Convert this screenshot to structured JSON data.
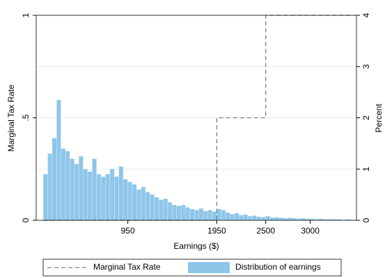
{
  "chart_data": {
    "type": "histogram",
    "xlabel": "Earnings ($)",
    "ylabel": "Marginal Tax Rate",
    "y2label": "Percent",
    "xlim": [
      -80,
      3520
    ],
    "xticks": [
      950,
      1950,
      2500,
      3000
    ],
    "ylim": [
      0,
      1
    ],
    "yticks": [
      0,
      {
        "value": 0.5,
        "label": ".5"
      },
      1
    ],
    "y2lim": [
      0,
      4
    ],
    "y2ticks": [
      0,
      1,
      2,
      3,
      4
    ],
    "grid": true,
    "legend": "bottom",
    "series": [
      {
        "name": "Marginal Tax Rate",
        "type": "line",
        "color": "#7f7f7f",
        "x": [
          0,
          1950,
          1950,
          2500,
          2500,
          3500
        ],
        "values": [
          0,
          0,
          0.5,
          0.5,
          1,
          1
        ]
      },
      {
        "name": "Distribution of earnings",
        "type": "histogram",
        "color": "#8ec6ea",
        "axis": "y2",
        "bins": [
          0,
          50,
          100,
          150,
          200,
          250,
          300,
          350,
          400,
          450,
          500,
          550,
          600,
          650,
          700,
          750,
          800,
          850,
          900,
          950,
          1000,
          1050,
          1100,
          1150,
          1200,
          1250,
          1300,
          1350,
          1400,
          1450,
          1500,
          1550,
          1600,
          1650,
          1700,
          1750,
          1800,
          1850,
          1900,
          1950,
          2000,
          2050,
          2100,
          2150,
          2200,
          2250,
          2300,
          2350,
          2400,
          2450,
          2500,
          2550,
          2600,
          2650,
          2700,
          2750,
          2800,
          2850,
          2900,
          2950,
          3000,
          3050,
          3100,
          3150,
          3200,
          3250,
          3300,
          3350,
          3400,
          3450,
          3500
        ],
        "values": [
          0.9,
          1.3,
          1.6,
          2.35,
          1.4,
          1.35,
          1.2,
          1.1,
          1.25,
          1.0,
          0.95,
          1.2,
          0.9,
          0.85,
          0.9,
          1.0,
          0.85,
          1.05,
          0.8,
          0.75,
          0.7,
          0.6,
          0.65,
          0.55,
          0.5,
          0.45,
          0.4,
          0.42,
          0.35,
          0.3,
          0.28,
          0.3,
          0.25,
          0.22,
          0.2,
          0.23,
          0.18,
          0.2,
          0.17,
          0.22,
          0.2,
          0.15,
          0.12,
          0.14,
          0.1,
          0.11,
          0.08,
          0.09,
          0.07,
          0.06,
          0.08,
          0.05,
          0.06,
          0.05,
          0.04,
          0.05,
          0.04,
          0.03,
          0.04,
          0.03,
          0.03,
          0.02,
          0.03,
          0.02,
          0.02,
          0.02,
          0.02,
          0.01,
          0.02,
          0.01
        ]
      }
    ]
  }
}
